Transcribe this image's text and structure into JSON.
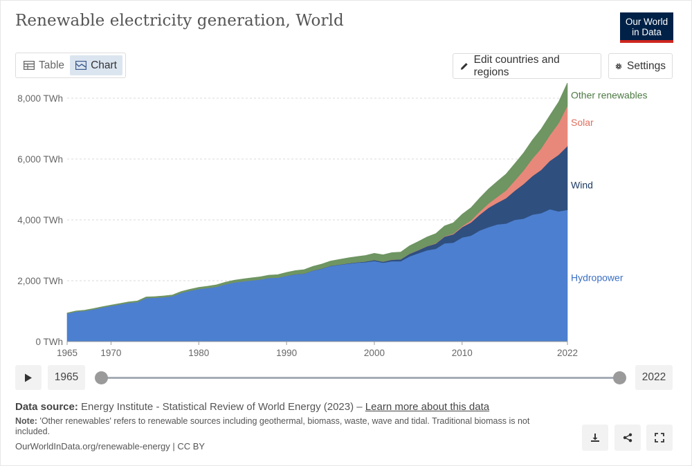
{
  "header": {
    "title": "Renewable electricity generation, World",
    "logo_line1": "Our World",
    "logo_line2": "in Data"
  },
  "controls": {
    "tab_table": "Table",
    "tab_chart": "Chart",
    "edit_label": "Edit countries and regions",
    "settings_label": "Settings"
  },
  "timeline": {
    "start_year": "1965",
    "end_year": "2022"
  },
  "footer": {
    "source_label": "Data source:",
    "source_text": "Energy Institute - Statistical Review of World Energy (2023) –",
    "learn_more": "Learn more about this data",
    "note_label": "Note:",
    "note_text": "'Other renewables' refers to renewable sources including geothermal, biomass, waste, wave and tidal. Traditional biomass is not included.",
    "url": "OurWorldInData.org/renewable-energy | CC BY"
  },
  "colors": {
    "hydro": "#4c7fcf",
    "wind": "#2f4f7f",
    "solar": "#e8887a",
    "other": "#6e9562",
    "accent": "#002147"
  },
  "chart_data": {
    "type": "area",
    "stacked": true,
    "title": "Renewable electricity generation, World",
    "ylabel": "TWh",
    "ylim": [
      0,
      8500
    ],
    "y_ticks": [
      0,
      2000,
      4000,
      6000,
      8000
    ],
    "y_tick_labels": [
      "0 TWh",
      "2,000 TWh",
      "4,000 TWh",
      "6,000 TWh",
      "8,000 TWh"
    ],
    "x_ticks": [
      1965,
      1970,
      1980,
      1990,
      2000,
      2010,
      2022
    ],
    "x": [
      1965,
      1966,
      1967,
      1968,
      1969,
      1970,
      1971,
      1972,
      1973,
      1974,
      1975,
      1976,
      1977,
      1978,
      1979,
      1980,
      1981,
      1982,
      1983,
      1984,
      1985,
      1986,
      1987,
      1988,
      1989,
      1990,
      1991,
      1992,
      1993,
      1994,
      1995,
      1996,
      1997,
      1998,
      1999,
      2000,
      2001,
      2002,
      2003,
      2004,
      2005,
      2006,
      2007,
      2008,
      2009,
      2010,
      2011,
      2012,
      2013,
      2014,
      2015,
      2016,
      2017,
      2018,
      2019,
      2020,
      2021,
      2022
    ],
    "series": [
      {
        "name": "Hydropower",
        "label_color": "#3a6fc4",
        "values": [
          920,
          985,
          1010,
          1060,
          1120,
          1170,
          1220,
          1270,
          1300,
          1430,
          1440,
          1460,
          1490,
          1600,
          1670,
          1730,
          1760,
          1800,
          1880,
          1940,
          1980,
          2010,
          2040,
          2090,
          2100,
          2160,
          2210,
          2230,
          2330,
          2390,
          2480,
          2520,
          2560,
          2590,
          2610,
          2650,
          2590,
          2640,
          2640,
          2800,
          2900,
          3000,
          3050,
          3230,
          3250,
          3420,
          3480,
          3650,
          3760,
          3850,
          3880,
          4000,
          4040,
          4170,
          4220,
          4350,
          4280,
          4330
        ]
      },
      {
        "name": "Wind",
        "label_color": "#1e3a64",
        "values": [
          0,
          0,
          0,
          0,
          0,
          0,
          0,
          0,
          0,
          0,
          0,
          0,
          0,
          0,
          0,
          0,
          0,
          0,
          0,
          0,
          0,
          0,
          0,
          0,
          0,
          4,
          4,
          5,
          6,
          7,
          8,
          9,
          12,
          16,
          21,
          31,
          38,
          52,
          63,
          85,
          104,
          133,
          171,
          220,
          277,
          342,
          437,
          520,
          635,
          712,
          833,
          960,
          1140,
          1270,
          1420,
          1590,
          1860,
          2100
        ]
      },
      {
        "name": "Solar",
        "label_color": "#e06d5c",
        "values": [
          0,
          0,
          0,
          0,
          0,
          0,
          0,
          0,
          0,
          0,
          0,
          0,
          0,
          0,
          0,
          0,
          0,
          0,
          0,
          0,
          0,
          0,
          0,
          0,
          0,
          0,
          0,
          0,
          0,
          0,
          0,
          0,
          0,
          0,
          0,
          1,
          2,
          2,
          3,
          3,
          4,
          6,
          8,
          12,
          20,
          32,
          63,
          100,
          138,
          191,
          253,
          330,
          442,
          574,
          703,
          847,
          1040,
          1320
        ]
      },
      {
        "name": "Other renewables",
        "label_color": "#4e7a44",
        "values": [
          20,
          22,
          24,
          26,
          28,
          30,
          32,
          34,
          36,
          38,
          40,
          42,
          44,
          47,
          50,
          55,
          60,
          65,
          70,
          75,
          80,
          85,
          90,
          95,
          100,
          110,
          120,
          130,
          140,
          150,
          160,
          170,
          180,
          190,
          200,
          220,
          225,
          230,
          235,
          260,
          280,
          300,
          320,
          340,
          360,
          390,
          420,
          450,
          480,
          510,
          540,
          560,
          580,
          610,
          640,
          650,
          700,
          760
        ]
      }
    ]
  }
}
